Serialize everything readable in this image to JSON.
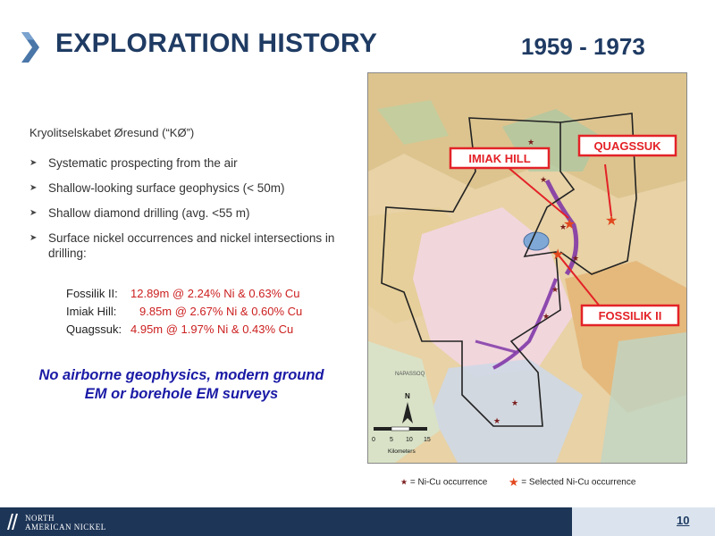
{
  "slide": {
    "title": "EXPLORATION HISTORY",
    "years": "1959 - 1973",
    "company": "Kryolitselskabet Øresund (“KØ”)",
    "bullets": [
      "Systematic prospecting from the air",
      "Shallow-looking surface geophysics (< 50m)",
      "Shallow diamond drilling (avg.  <55 m)",
      "Surface nickel occurrences and nickel intersections in drilling:"
    ],
    "results": [
      {
        "label": "Fossilik II:",
        "value": "12.89m @ 2.24% Ni & 0.63% Cu"
      },
      {
        "label": "Imiak Hill:",
        "value": "9.85m @ 2.67% Ni & 0.60% Cu"
      },
      {
        "label": "Quagssuk:",
        "value": "4.95m @ 1.97% Ni & 0.43% Cu"
      }
    ],
    "note": "No airborne geophysics, modern ground EM or borehole EM surveys",
    "page_number": "10"
  },
  "map": {
    "callouts": [
      "IMIAK HILL",
      "QUAGSSUK",
      "FOSSILIK II"
    ],
    "north_label": "N",
    "scale_ticks": [
      "0",
      "5",
      "10",
      "15"
    ],
    "scale_unit": "Kilometers",
    "place_labels": [
      "NAPASSOQ"
    ]
  },
  "legend": {
    "ni_cu": "= Ni-Cu occurrence",
    "selected": "= Selected Ni-Cu occurrence"
  },
  "logo": {
    "line1": "NORTH",
    "line2": "AMERICAN NICKEL"
  },
  "colors": {
    "title": "#1f3b63",
    "result_value": "#cc1f1f",
    "note": "#1a1aa6",
    "callout": "#e32227",
    "footer": "#1d3557"
  }
}
